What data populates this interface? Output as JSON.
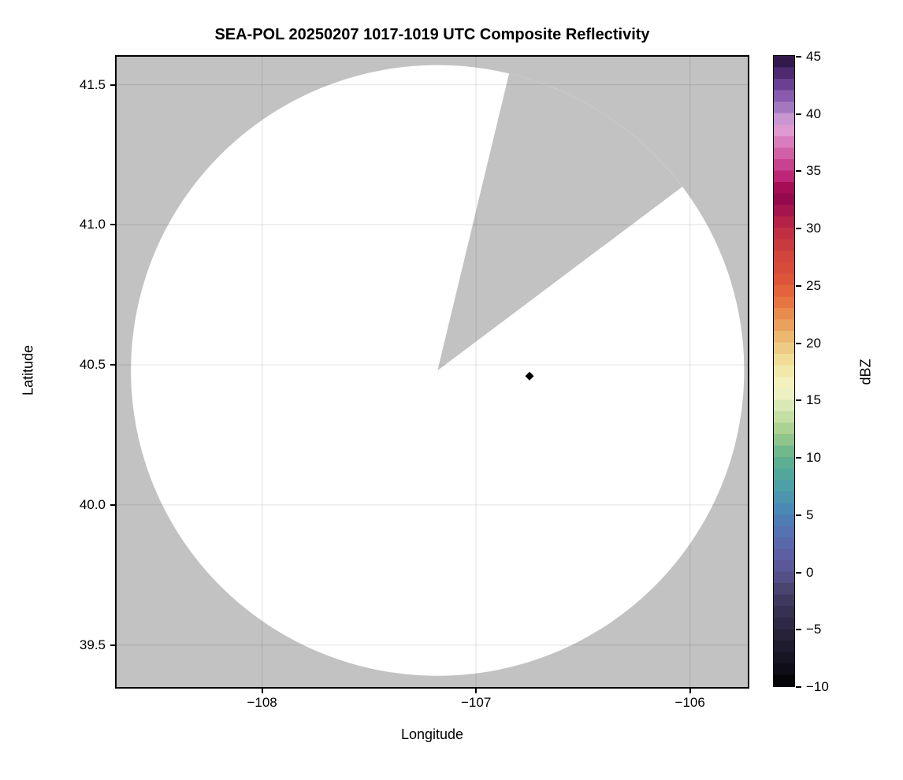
{
  "chart_data": {
    "type": "heatmap",
    "subtype": "radar-ppi-composite",
    "title": "SEA-POL 20250207 1017-1019 UTC Composite Reflectivity",
    "xlabel": "Longitude",
    "ylabel": "Latitude",
    "xlim": [
      -108.68,
      -105.73
    ],
    "ylim": [
      39.35,
      41.6
    ],
    "xticks": {
      "values": [
        -108,
        -107,
        -106
      ],
      "labels": [
        "−108",
        "−107",
        "−106"
      ]
    },
    "yticks": {
      "values": [
        41.5,
        41.0,
        40.5,
        40.0,
        39.5
      ],
      "labels": [
        "41.5",
        "41.0",
        "40.5",
        "40.0",
        "39.5"
      ]
    },
    "grid": true,
    "masked_color": "#c2c2c2",
    "scanned_area_color": "#ffffff",
    "radar_coverage": {
      "center_lon": -107.18,
      "center_lat": 40.48,
      "radius_deg_lat": 1.09,
      "blocked_sector_az_deg": [
        13.5,
        53.0
      ]
    },
    "marker": {
      "lon": -106.75,
      "lat": 40.46,
      "shape": "diamond",
      "color": "#000000"
    },
    "colorbar": {
      "label": "dBZ",
      "min": -10,
      "max": 45,
      "band_step": 1,
      "tick_values": [
        45,
        40,
        35,
        30,
        25,
        20,
        15,
        10,
        5,
        0,
        -5,
        -10
      ],
      "tick_labels": [
        "45",
        "40",
        "35",
        "30",
        "25",
        "20",
        "15",
        "10",
        "5",
        "0",
        "−5",
        "−10"
      ],
      "stops": [
        [
          -10,
          "#000000"
        ],
        [
          -9,
          "#0a0912"
        ],
        [
          -8,
          "#13111d"
        ],
        [
          -6.5,
          "#1f1b2e"
        ],
        [
          -5,
          "#2b2540"
        ],
        [
          -3,
          "#3a3458"
        ],
        [
          -1.5,
          "#4a4470"
        ],
        [
          0,
          "#5b5492"
        ],
        [
          2,
          "#5c64a8"
        ],
        [
          3.5,
          "#5573b2"
        ],
        [
          5,
          "#4a82b8"
        ],
        [
          7,
          "#4b9dab"
        ],
        [
          8.5,
          "#52a79c"
        ],
        [
          10,
          "#62b18d"
        ],
        [
          12,
          "#9ecb89"
        ],
        [
          13.5,
          "#c4dfa4"
        ],
        [
          15,
          "#e4edbd"
        ],
        [
          16,
          "#f6f4c6"
        ],
        [
          17,
          "#f4eeb5"
        ],
        [
          18.5,
          "#f0dc96"
        ],
        [
          20,
          "#ecc278"
        ],
        [
          21,
          "#ebac64"
        ],
        [
          22.5,
          "#e88c4e"
        ],
        [
          24,
          "#e56a3c"
        ],
        [
          25,
          "#e05c38"
        ],
        [
          26,
          "#d94e3a"
        ],
        [
          27.5,
          "#d2453c"
        ],
        [
          29,
          "#c53440"
        ],
        [
          30,
          "#bd2a43"
        ],
        [
          31,
          "#aa1b4b"
        ],
        [
          32.5,
          "#96094e"
        ],
        [
          33.5,
          "#a50d56"
        ],
        [
          35,
          "#c63287"
        ],
        [
          36.5,
          "#d05fa5"
        ],
        [
          37.5,
          "#d87cbd"
        ],
        [
          39,
          "#e0a8da"
        ],
        [
          40,
          "#af86c8"
        ],
        [
          41.5,
          "#8a5bad"
        ],
        [
          43,
          "#5c3282"
        ],
        [
          44.5,
          "#331a4d"
        ],
        [
          45,
          "#2b123d"
        ]
      ]
    }
  }
}
